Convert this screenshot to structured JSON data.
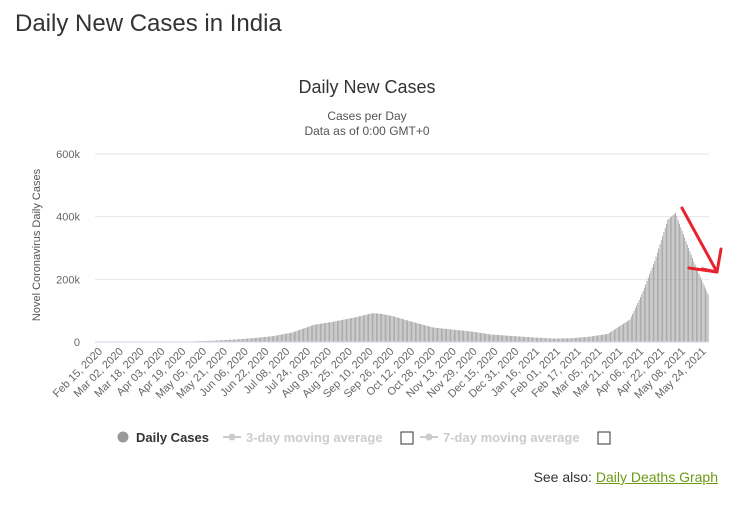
{
  "page": {
    "title": "Daily New Cases in India"
  },
  "see_also": {
    "prefix": "See also: ",
    "link_label": "Daily Deaths Graph"
  },
  "colors": {
    "bars": "#999999",
    "arrow": "#e8232f",
    "link": "#6c9a16",
    "legend_inactive": "#cccccc"
  },
  "annotation": {
    "type": "arrow",
    "meaning": "pointing at declining cases at end of series"
  },
  "chart_data": {
    "type": "bar",
    "title": "Daily New Cases",
    "subtitle_lines": [
      "Cases per Day",
      "Data as of 0:00 GMT+0"
    ],
    "ylabel": "Novel Coronavirus Daily Cases",
    "xlabel": "",
    "ylim": [
      0,
      600000
    ],
    "yticks": [
      0,
      200000,
      400000,
      600000
    ],
    "ytick_labels": [
      "0",
      "200k",
      "400k",
      "600k"
    ],
    "grid": true,
    "legend_placement": "bottom",
    "legend": [
      {
        "name": "Daily Cases",
        "active": true,
        "icon": "circle-marker-icon"
      },
      {
        "name": "3-day moving average",
        "active": false,
        "icon": "line-marker-icon"
      },
      {
        "name": "7-day moving average",
        "active": false,
        "icon": "line-marker-icon"
      }
    ],
    "x_start": "2020-02-15",
    "x_end": "2021-05-31",
    "x_tick_labels": [
      "Feb 15, 2020",
      "Mar 02, 2020",
      "Mar 18, 2020",
      "Apr 03, 2020",
      "Apr 19, 2020",
      "May 05, 2020",
      "May 21, 2020",
      "Jun 06, 2020",
      "Jun 22, 2020",
      "Jul 08, 2020",
      "Jul 24, 2020",
      "Aug 09, 2020",
      "Aug 25, 2020",
      "Sep 10, 2020",
      "Sep 26, 2020",
      "Oct 12, 2020",
      "Oct 28, 2020",
      "Nov 13, 2020",
      "Nov 29, 2020",
      "Dec 15, 2020",
      "Dec 31, 2020",
      "Jan 16, 2021",
      "Feb 01, 2021",
      "Feb 17, 2021",
      "Mar 05, 2021",
      "Mar 21, 2021",
      "Apr 06, 2021",
      "Apr 22, 2021",
      "May 08, 2021",
      "May 24, 2021"
    ],
    "series": [
      {
        "name": "Daily Cases",
        "points": [
          [
            "2020-02-15",
            0
          ],
          [
            "2020-03-15",
            100
          ],
          [
            "2020-04-01",
            500
          ],
          [
            "2020-04-15",
            1000
          ],
          [
            "2020-05-01",
            2000
          ],
          [
            "2020-05-15",
            4000
          ],
          [
            "2020-06-01",
            8000
          ],
          [
            "2020-06-15",
            12000
          ],
          [
            "2020-07-01",
            19000
          ],
          [
            "2020-07-15",
            30000
          ],
          [
            "2020-08-01",
            55000
          ],
          [
            "2020-08-15",
            64000
          ],
          [
            "2020-09-01",
            78000
          ],
          [
            "2020-09-15",
            92000
          ],
          [
            "2020-09-22",
            90000
          ],
          [
            "2020-10-01",
            82000
          ],
          [
            "2020-10-15",
            65000
          ],
          [
            "2020-11-01",
            46000
          ],
          [
            "2020-11-15",
            40000
          ],
          [
            "2020-12-01",
            33000
          ],
          [
            "2020-12-15",
            24000
          ],
          [
            "2021-01-01",
            19000
          ],
          [
            "2021-01-15",
            15000
          ],
          [
            "2021-02-01",
            11000
          ],
          [
            "2021-02-15",
            12000
          ],
          [
            "2021-03-01",
            17000
          ],
          [
            "2021-03-15",
            26000
          ],
          [
            "2021-04-01",
            72000
          ],
          [
            "2021-04-10",
            152000
          ],
          [
            "2021-04-20",
            259000
          ],
          [
            "2021-04-30",
            390000
          ],
          [
            "2021-05-06",
            412000
          ],
          [
            "2021-05-10",
            366000
          ],
          [
            "2021-05-15",
            311000
          ],
          [
            "2021-05-20",
            257000
          ],
          [
            "2021-05-25",
            208000
          ],
          [
            "2021-05-31",
            152000
          ]
        ]
      }
    ]
  }
}
